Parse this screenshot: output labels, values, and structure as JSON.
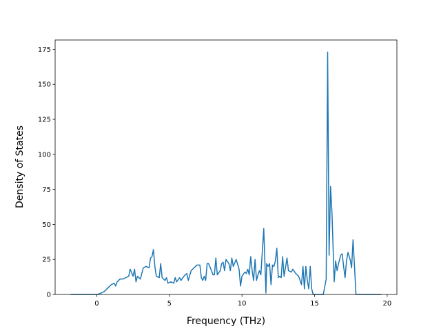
{
  "chart_data": {
    "type": "line",
    "xlabel": "Frequency (THz)",
    "ylabel": "Density of States",
    "x": [
      -1.8,
      0.0,
      0.2,
      0.5,
      0.8,
      1.0,
      1.2,
      1.3,
      1.4,
      1.6,
      1.8,
      2.0,
      2.2,
      2.3,
      2.5,
      2.6,
      2.7,
      2.8,
      3.0,
      3.2,
      3.4,
      3.6,
      3.7,
      3.8,
      3.9,
      4.0,
      4.1,
      4.3,
      4.4,
      4.5,
      4.7,
      4.8,
      4.9,
      5.1,
      5.3,
      5.4,
      5.5,
      5.7,
      5.8,
      6.0,
      6.2,
      6.3,
      6.5,
      6.7,
      6.9,
      7.1,
      7.2,
      7.3,
      7.4,
      7.5,
      7.6,
      7.7,
      7.9,
      8.0,
      8.1,
      8.2,
      8.3,
      8.5,
      8.6,
      8.7,
      8.8,
      8.9,
      9.1,
      9.2,
      9.3,
      9.4,
      9.6,
      9.8,
      9.9,
      10.0,
      10.2,
      10.3,
      10.4,
      10.5,
      10.6,
      10.7,
      10.8,
      10.9,
      11.0,
      11.1,
      11.2,
      11.3,
      11.5,
      11.65,
      11.7,
      11.8,
      11.9,
      12.0,
      12.1,
      12.2,
      12.3,
      12.4,
      12.5,
      12.6,
      12.7,
      12.8,
      12.9,
      13.1,
      13.2,
      13.4,
      13.5,
      13.7,
      13.9,
      14.0,
      14.1,
      14.2,
      14.3,
      14.4,
      14.5,
      14.6,
      14.7,
      14.8,
      14.9,
      15.6,
      15.8,
      15.9,
      16.0,
      16.1,
      16.2,
      16.35,
      16.45,
      16.55,
      16.65,
      16.8,
      16.9,
      17.0,
      17.1,
      17.2,
      17.3,
      17.45,
      17.55,
      17.65,
      17.75,
      17.85,
      19.6
    ],
    "series": [
      {
        "color": "#1f77b4",
        "values": [
          0,
          0,
          0.5,
          2,
          5,
          7,
          8,
          6,
          9,
          11,
          11,
          12,
          13,
          18,
          13,
          18,
          9,
          13,
          11,
          19,
          20,
          19,
          26,
          27,
          32,
          20,
          13,
          12,
          22,
          12,
          10,
          12,
          8,
          9,
          8,
          12,
          9,
          12,
          10,
          13,
          15,
          10,
          17,
          19,
          21,
          21,
          12,
          10,
          13,
          10,
          22,
          22,
          17,
          14,
          14,
          26,
          14,
          17,
          22,
          23,
          17,
          25,
          22,
          17,
          26,
          20,
          25,
          18,
          6,
          13,
          16,
          15,
          18,
          14,
          27,
          17,
          10,
          25,
          10,
          14,
          17,
          14,
          47,
          1,
          22,
          20,
          22,
          7,
          21,
          20,
          24,
          33,
          12,
          13,
          12,
          27,
          13,
          26,
          17,
          16,
          18,
          15,
          13,
          10,
          7,
          20,
          4,
          20,
          10,
          4,
          20,
          4,
          0,
          0,
          11,
          173,
          28,
          77,
          58,
          9,
          24,
          17,
          22,
          28,
          29,
          20,
          12,
          24,
          30,
          25,
          19,
          39,
          20,
          0,
          0
        ]
      }
    ],
    "xlim": [
      -2.87,
      20.67
    ],
    "ylim": [
      0,
      181.6
    ],
    "xticks": [
      0,
      5,
      10,
      15,
      20
    ],
    "yticks": [
      0,
      25,
      50,
      75,
      100,
      125,
      150,
      175
    ]
  }
}
